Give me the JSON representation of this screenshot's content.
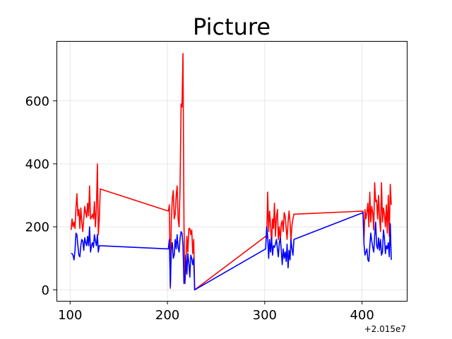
{
  "chart_data": {
    "type": "line",
    "title": "Picture",
    "xlabel": "",
    "ylabel": "",
    "x_offset_label": "+2.015e7",
    "xlim": [
      86,
      446
    ],
    "ylim": [
      -35,
      790
    ],
    "xticks": [
      100,
      200,
      300,
      400
    ],
    "yticks": [
      0,
      200,
      400,
      600
    ],
    "grid": true,
    "series": [
      {
        "color": "#ff0000",
        "points": [
          [
            101,
            190
          ],
          [
            102,
            225
          ],
          [
            103,
            200
          ],
          [
            104,
            215
          ],
          [
            105,
            195
          ],
          [
            106,
            260
          ],
          [
            107,
            305
          ],
          [
            108,
            235
          ],
          [
            109,
            255
          ],
          [
            110,
            195
          ],
          [
            111,
            260
          ],
          [
            112,
            215
          ],
          [
            113,
            185
          ],
          [
            114,
            225
          ],
          [
            115,
            265
          ],
          [
            116,
            245
          ],
          [
            117,
            230
          ],
          [
            118,
            275
          ],
          [
            119,
            235
          ],
          [
            120,
            330
          ],
          [
            121,
            225
          ],
          [
            122,
            230
          ],
          [
            123,
            240
          ],
          [
            124,
            225
          ],
          [
            125,
            280
          ],
          [
            126,
            200
          ],
          [
            127,
            255
          ],
          [
            128,
            400
          ],
          [
            129,
            175
          ],
          [
            130,
            225
          ],
          [
            131,
            320
          ],
          [
            201,
            250
          ],
          [
            202,
            270
          ],
          [
            203,
            5
          ],
          [
            204,
            225
          ],
          [
            205,
            290
          ],
          [
            206,
            315
          ],
          [
            207,
            225
          ],
          [
            208,
            240
          ],
          [
            209,
            300
          ],
          [
            210,
            330
          ],
          [
            211,
            225
          ],
          [
            212,
            200
          ],
          [
            213,
            330
          ],
          [
            214,
            590
          ],
          [
            215,
            580
          ],
          [
            216,
            750
          ],
          [
            217,
            210
          ],
          [
            218,
            20
          ],
          [
            219,
            80
          ],
          [
            220,
            170
          ],
          [
            221,
            120
          ],
          [
            222,
            195
          ],
          [
            223,
            195
          ],
          [
            224,
            175
          ],
          [
            225,
            190
          ],
          [
            226,
            115
          ],
          [
            227,
            160
          ],
          [
            228,
            0
          ],
          [
            301,
            170
          ],
          [
            302,
            165
          ],
          [
            303,
            310
          ],
          [
            304,
            185
          ],
          [
            305,
            250
          ],
          [
            306,
            210
          ],
          [
            307,
            140
          ],
          [
            308,
            225
          ],
          [
            309,
            195
          ],
          [
            310,
            275
          ],
          [
            311,
            170
          ],
          [
            312,
            230
          ],
          [
            313,
            255
          ],
          [
            314,
            160
          ],
          [
            315,
            200
          ],
          [
            316,
            155
          ],
          [
            317,
            210
          ],
          [
            318,
            220
          ],
          [
            319,
            185
          ],
          [
            320,
            245
          ],
          [
            321,
            235
          ],
          [
            322,
            195
          ],
          [
            323,
            160
          ],
          [
            324,
            215
          ],
          [
            325,
            250
          ],
          [
            326,
            215
          ],
          [
            327,
            155
          ],
          [
            328,
            205
          ],
          [
            329,
            225
          ],
          [
            330,
            240
          ],
          [
            401,
            250
          ],
          [
            402,
            160
          ],
          [
            403,
            255
          ],
          [
            404,
            225
          ],
          [
            405,
            245
          ],
          [
            406,
            275
          ],
          [
            407,
            200
          ],
          [
            408,
            310
          ],
          [
            409,
            215
          ],
          [
            410,
            265
          ],
          [
            411,
            245
          ],
          [
            412,
            190
          ],
          [
            413,
            340
          ],
          [
            414,
            280
          ],
          [
            415,
            285
          ],
          [
            416,
            225
          ],
          [
            417,
            300
          ],
          [
            418,
            230
          ],
          [
            419,
            185
          ],
          [
            420,
            340
          ],
          [
            421,
            215
          ],
          [
            422,
            260
          ],
          [
            423,
            240
          ],
          [
            424,
            200
          ],
          [
            425,
            270
          ],
          [
            426,
            180
          ],
          [
            427,
            300
          ],
          [
            428,
            170
          ],
          [
            429,
            335
          ],
          [
            430,
            270
          ]
        ]
      },
      {
        "color": "#0000ff",
        "points": [
          [
            101,
            115
          ],
          [
            102,
            115
          ],
          [
            103,
            110
          ],
          [
            104,
            95
          ],
          [
            105,
            125
          ],
          [
            106,
            180
          ],
          [
            107,
            175
          ],
          [
            108,
            140
          ],
          [
            109,
            110
          ],
          [
            110,
            105
          ],
          [
            111,
            140
          ],
          [
            112,
            160
          ],
          [
            113,
            155
          ],
          [
            114,
            125
          ],
          [
            115,
            165
          ],
          [
            116,
            150
          ],
          [
            117,
            140
          ],
          [
            118,
            170
          ],
          [
            119,
            140
          ],
          [
            120,
            200
          ],
          [
            121,
            120
          ],
          [
            122,
            140
          ],
          [
            123,
            150
          ],
          [
            124,
            135
          ],
          [
            125,
            175
          ],
          [
            126,
            155
          ],
          [
            127,
            140
          ],
          [
            128,
            175
          ],
          [
            129,
            120
          ],
          [
            130,
            140
          ],
          [
            131,
            140
          ],
          [
            201,
            130
          ],
          [
            202,
            160
          ],
          [
            203,
            10
          ],
          [
            204,
            130
          ],
          [
            205,
            150
          ],
          [
            206,
            100
          ],
          [
            207,
            110
          ],
          [
            208,
            160
          ],
          [
            209,
            130
          ],
          [
            210,
            175
          ],
          [
            211,
            135
          ],
          [
            212,
            120
          ],
          [
            213,
            165
          ],
          [
            214,
            185
          ],
          [
            215,
            180
          ],
          [
            216,
            140
          ],
          [
            217,
            20
          ],
          [
            218,
            30
          ],
          [
            219,
            110
          ],
          [
            220,
            50
          ],
          [
            221,
            115
          ],
          [
            222,
            85
          ],
          [
            223,
            40
          ],
          [
            224,
            110
          ],
          [
            225,
            100
          ],
          [
            226,
            80
          ],
          [
            227,
            100
          ],
          [
            228,
            0
          ],
          [
            301,
            130
          ],
          [
            302,
            200
          ],
          [
            303,
            170
          ],
          [
            304,
            100
          ],
          [
            305,
            160
          ],
          [
            306,
            120
          ],
          [
            307,
            165
          ],
          [
            308,
            110
          ],
          [
            309,
            140
          ],
          [
            310,
            135
          ],
          [
            311,
            145
          ],
          [
            312,
            160
          ],
          [
            313,
            130
          ],
          [
            314,
            105
          ],
          [
            315,
            150
          ],
          [
            316,
            165
          ],
          [
            317,
            125
          ],
          [
            318,
            80
          ],
          [
            319,
            130
          ],
          [
            320,
            100
          ],
          [
            321,
            120
          ],
          [
            322,
            90
          ],
          [
            323,
            145
          ],
          [
            324,
            70
          ],
          [
            325,
            125
          ],
          [
            326,
            95
          ],
          [
            327,
            160
          ],
          [
            328,
            130
          ],
          [
            329,
            110
          ],
          [
            330,
            160
          ],
          [
            401,
            245
          ],
          [
            402,
            145
          ],
          [
            403,
            110
          ],
          [
            404,
            120
          ],
          [
            405,
            130
          ],
          [
            406,
            95
          ],
          [
            407,
            90
          ],
          [
            408,
            140
          ],
          [
            409,
            180
          ],
          [
            410,
            155
          ],
          [
            411,
            135
          ],
          [
            412,
            120
          ],
          [
            413,
            170
          ],
          [
            414,
            215
          ],
          [
            415,
            140
          ],
          [
            416,
            130
          ],
          [
            417,
            165
          ],
          [
            418,
            125
          ],
          [
            419,
            160
          ],
          [
            420,
            110
          ],
          [
            421,
            120
          ],
          [
            422,
            190
          ],
          [
            423,
            165
          ],
          [
            424,
            115
          ],
          [
            425,
            140
          ],
          [
            426,
            130
          ],
          [
            427,
            150
          ],
          [
            428,
            105
          ],
          [
            429,
            210
          ],
          [
            430,
            95
          ]
        ]
      }
    ]
  }
}
